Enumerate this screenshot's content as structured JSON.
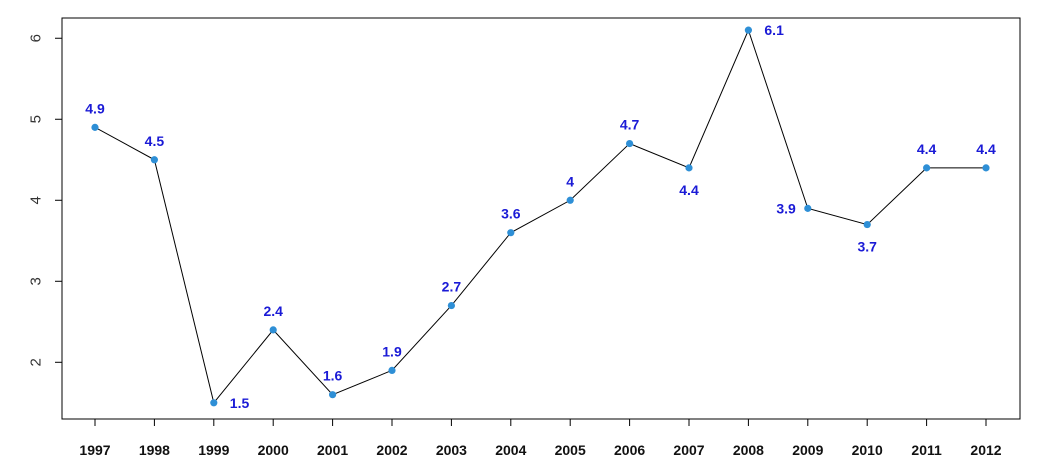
{
  "chart_data": {
    "type": "line",
    "x": [
      "1997",
      "1998",
      "1999",
      "2000",
      "2001",
      "2002",
      "2003",
      "2004",
      "2005",
      "2006",
      "2007",
      "2008",
      "2009",
      "2010",
      "2011",
      "2012"
    ],
    "values": [
      4.9,
      4.5,
      1.5,
      2.4,
      1.6,
      1.9,
      2.7,
      3.6,
      4,
      4.7,
      4.4,
      6.1,
      3.9,
      3.7,
      4.4,
      4.4
    ],
    "data_labels": [
      "4.9",
      "4.5",
      "1.5",
      "2.4",
      "1.6",
      "1.9",
      "2.7",
      "3.6",
      "4",
      "4.7",
      "4.4",
      "6.1",
      "3.9",
      "3.7",
      "4.4",
      "4.4"
    ],
    "yticks": [
      2,
      3,
      4,
      5,
      6
    ],
    "ytick_labels": [
      "2",
      "3",
      "4",
      "5",
      "6"
    ],
    "ylim": [
      1.3,
      6.25
    ],
    "title": "",
    "xlabel": "",
    "ylabel": "",
    "grid": false,
    "colors": {
      "line": "#000000",
      "marker": "#2e8fd6",
      "label": "#1a1ad6",
      "axis": "#000000"
    }
  }
}
